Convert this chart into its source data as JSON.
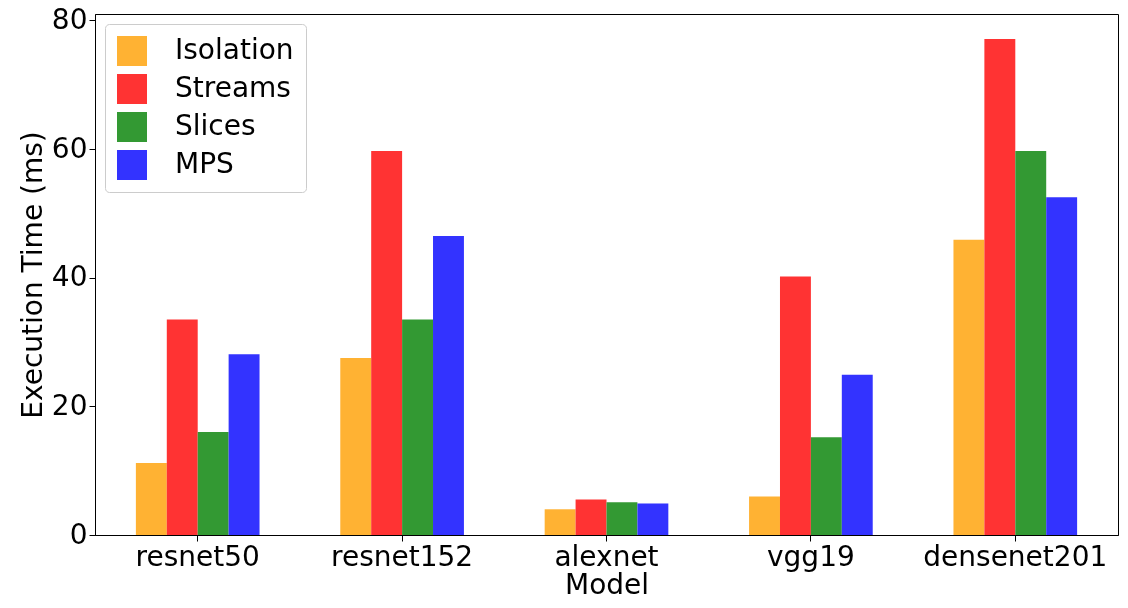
{
  "chart_data": {
    "type": "bar",
    "xlabel": "Model",
    "ylabel": "Execution Time (ms)",
    "categories": [
      "resnet50",
      "resnet152",
      "alexnet",
      "vgg19",
      "densenet201"
    ],
    "series": [
      {
        "name": "Isolation",
        "color": "#ffb233",
        "values": [
          11.2,
          27.5,
          4.0,
          6.0,
          45.9
        ]
      },
      {
        "name": "Streams",
        "color": "#ff3333",
        "values": [
          33.5,
          59.7,
          5.5,
          40.2,
          77.1
        ]
      },
      {
        "name": "Slices",
        "color": "#339933",
        "values": [
          16.0,
          33.5,
          5.1,
          15.2,
          59.7
        ]
      },
      {
        "name": "MPS",
        "color": "#3333ff",
        "values": [
          28.1,
          46.5,
          4.9,
          24.9,
          52.5
        ]
      }
    ],
    "ylim": [
      0,
      81
    ],
    "yticks": [
      0,
      20,
      40,
      60,
      80
    ],
    "grid": false,
    "legend": "top left"
  }
}
